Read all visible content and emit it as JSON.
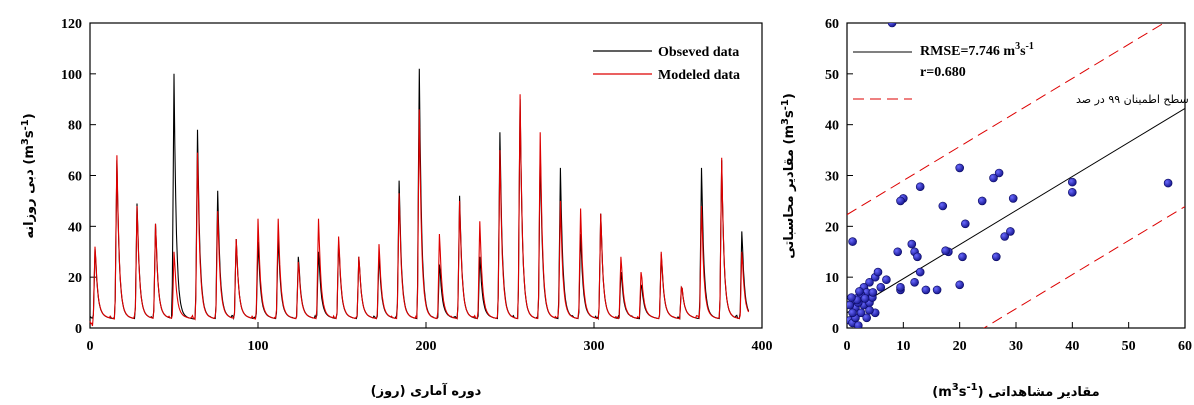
{
  "chart_data": [
    {
      "type": "line",
      "xlabel": "دوره آماری (روز)",
      "ylabel": "دبی روزانه (m³s⁻¹)",
      "ylabel_parts": {
        "text": "دبی روزانه",
        "unit_base": "m",
        "unit_sup1": "3",
        "unit_mid": "s",
        "unit_sup2": "-1"
      },
      "xlim": [
        0,
        400
      ],
      "ylim": [
        0,
        120
      ],
      "xticks": [
        0,
        100,
        200,
        300,
        400
      ],
      "yticks": [
        0,
        20,
        40,
        60,
        80,
        100,
        120
      ],
      "legend_position": "top-right",
      "colors": {
        "observed": "#000000",
        "modeled": "#dd0000"
      },
      "series": [
        {
          "name": "Obseved data",
          "peaks": [
            [
              3,
              31
            ],
            [
              16,
              66
            ],
            [
              28,
              49
            ],
            [
              39,
              41
            ],
            [
              50,
              100
            ],
            [
              64,
              78
            ],
            [
              76,
              54
            ],
            [
              87,
              35
            ],
            [
              100,
              34
            ],
            [
              112,
              36
            ],
            [
              124,
              28
            ],
            [
              136,
              30
            ],
            [
              148,
              34
            ],
            [
              160,
              28
            ],
            [
              172,
              28
            ],
            [
              184,
              58
            ],
            [
              196,
              102
            ],
            [
              208,
              25
            ],
            [
              220,
              52
            ],
            [
              232,
              28
            ],
            [
              244,
              77
            ],
            [
              256,
              90
            ],
            [
              268,
              70
            ],
            [
              280,
              63
            ],
            [
              292,
              37
            ],
            [
              304,
              45
            ],
            [
              316,
              22
            ],
            [
              328,
              17
            ],
            [
              340,
              29
            ],
            [
              352,
              16
            ],
            [
              364,
              63
            ],
            [
              376,
              66
            ],
            [
              388,
              38
            ]
          ]
        },
        {
          "name": "Modeled data",
          "peaks": [
            [
              3,
              32
            ],
            [
              16,
              68
            ],
            [
              28,
              48
            ],
            [
              39,
              41
            ],
            [
              50,
              30
            ],
            [
              64,
              69
            ],
            [
              76,
              46
            ],
            [
              87,
              35
            ],
            [
              100,
              43
            ],
            [
              112,
              43
            ],
            [
              124,
              26
            ],
            [
              136,
              43
            ],
            [
              148,
              36
            ],
            [
              160,
              28
            ],
            [
              172,
              33
            ],
            [
              184,
              53
            ],
            [
              196,
              86
            ],
            [
              208,
              37
            ],
            [
              220,
              50
            ],
            [
              232,
              42
            ],
            [
              244,
              70
            ],
            [
              256,
              92
            ],
            [
              268,
              77
            ],
            [
              280,
              50
            ],
            [
              292,
              47
            ],
            [
              304,
              45
            ],
            [
              316,
              28
            ],
            [
              328,
              22
            ],
            [
              340,
              30
            ],
            [
              352,
              16
            ],
            [
              364,
              48
            ],
            [
              376,
              67
            ],
            [
              388,
              30
            ]
          ]
        }
      ]
    },
    {
      "type": "scatter",
      "xlabel_parts": {
        "text": "مقادیر مشاهداتی",
        "unit_base": "m",
        "unit_sup1": "3",
        "unit_mid": "s",
        "unit_sup2": "-1"
      },
      "ylabel_parts": {
        "text": "مقادیر محاسباتی",
        "unit_base": "m",
        "unit_sup1": "3",
        "unit_mid": "s",
        "unit_sup2": "-1"
      },
      "xlim": [
        0,
        60
      ],
      "ylim": [
        0,
        60
      ],
      "xticks": [
        0,
        10,
        20,
        30,
        40,
        50,
        60
      ],
      "yticks": [
        0,
        10,
        20,
        30,
        40,
        50,
        60
      ],
      "fit_line": {
        "intercept": 3.0,
        "slope": 0.67
      },
      "confidence_offset": 19.3,
      "legend_position": "top-left",
      "legend": {
        "rmse_prefix": "RMSE=7.746 m",
        "rmse_sup1": "3",
        "rmse_mid": "s",
        "rmse_sup2": "-1",
        "r": "r=0.680",
        "confidence": "سطح اطمینان ۹۹ در صد"
      },
      "colors": {
        "points": "#1a1aa8",
        "fit": "#000000",
        "confidence": "#dd0000"
      },
      "points": [
        [
          8,
          60
        ],
        [
          1,
          17
        ],
        [
          20,
          31.5
        ],
        [
          27,
          30.5
        ],
        [
          26,
          29.5
        ],
        [
          40,
          28.7
        ],
        [
          40,
          26.7
        ],
        [
          57,
          28.5
        ],
        [
          13,
          27.8
        ],
        [
          10,
          25.5
        ],
        [
          9.5,
          25
        ],
        [
          24,
          25
        ],
        [
          29.5,
          25.5
        ],
        [
          17,
          24
        ],
        [
          11.5,
          16.5
        ],
        [
          12,
          15
        ],
        [
          12.5,
          14
        ],
        [
          9,
          15
        ],
        [
          20.5,
          14
        ],
        [
          21,
          20.5
        ],
        [
          26.5,
          14
        ],
        [
          28,
          18
        ],
        [
          29,
          19
        ],
        [
          18,
          15
        ],
        [
          17.5,
          15.2
        ],
        [
          16,
          7.5
        ],
        [
          20,
          8.5
        ],
        [
          9.5,
          7.5
        ],
        [
          9.5,
          8
        ],
        [
          14,
          7.5
        ],
        [
          13,
          11
        ],
        [
          12,
          9
        ],
        [
          7,
          9.5
        ],
        [
          6,
          8
        ],
        [
          5,
          10
        ],
        [
          5.5,
          11
        ],
        [
          4,
          9
        ],
        [
          3,
          8
        ],
        [
          3.5,
          7
        ],
        [
          2,
          6
        ],
        [
          1,
          5
        ],
        [
          1.5,
          4
        ],
        [
          0.5,
          1.5
        ],
        [
          1,
          1
        ],
        [
          2,
          0.5
        ],
        [
          1.5,
          2
        ],
        [
          2.5,
          3
        ],
        [
          3,
          4.5
        ],
        [
          4,
          5
        ],
        [
          4.5,
          6
        ],
        [
          5,
          3
        ],
        [
          2,
          5
        ],
        [
          2.5,
          6.5
        ],
        [
          3.5,
          2
        ],
        [
          1,
          3
        ],
        [
          0.5,
          4.5
        ],
        [
          4,
          3.5
        ],
        [
          1.8,
          5.5
        ],
        [
          3.2,
          5.8
        ],
        [
          4.6,
          7
        ],
        [
          2.2,
          7.2
        ],
        [
          0.8,
          6
        ]
      ]
    }
  ]
}
